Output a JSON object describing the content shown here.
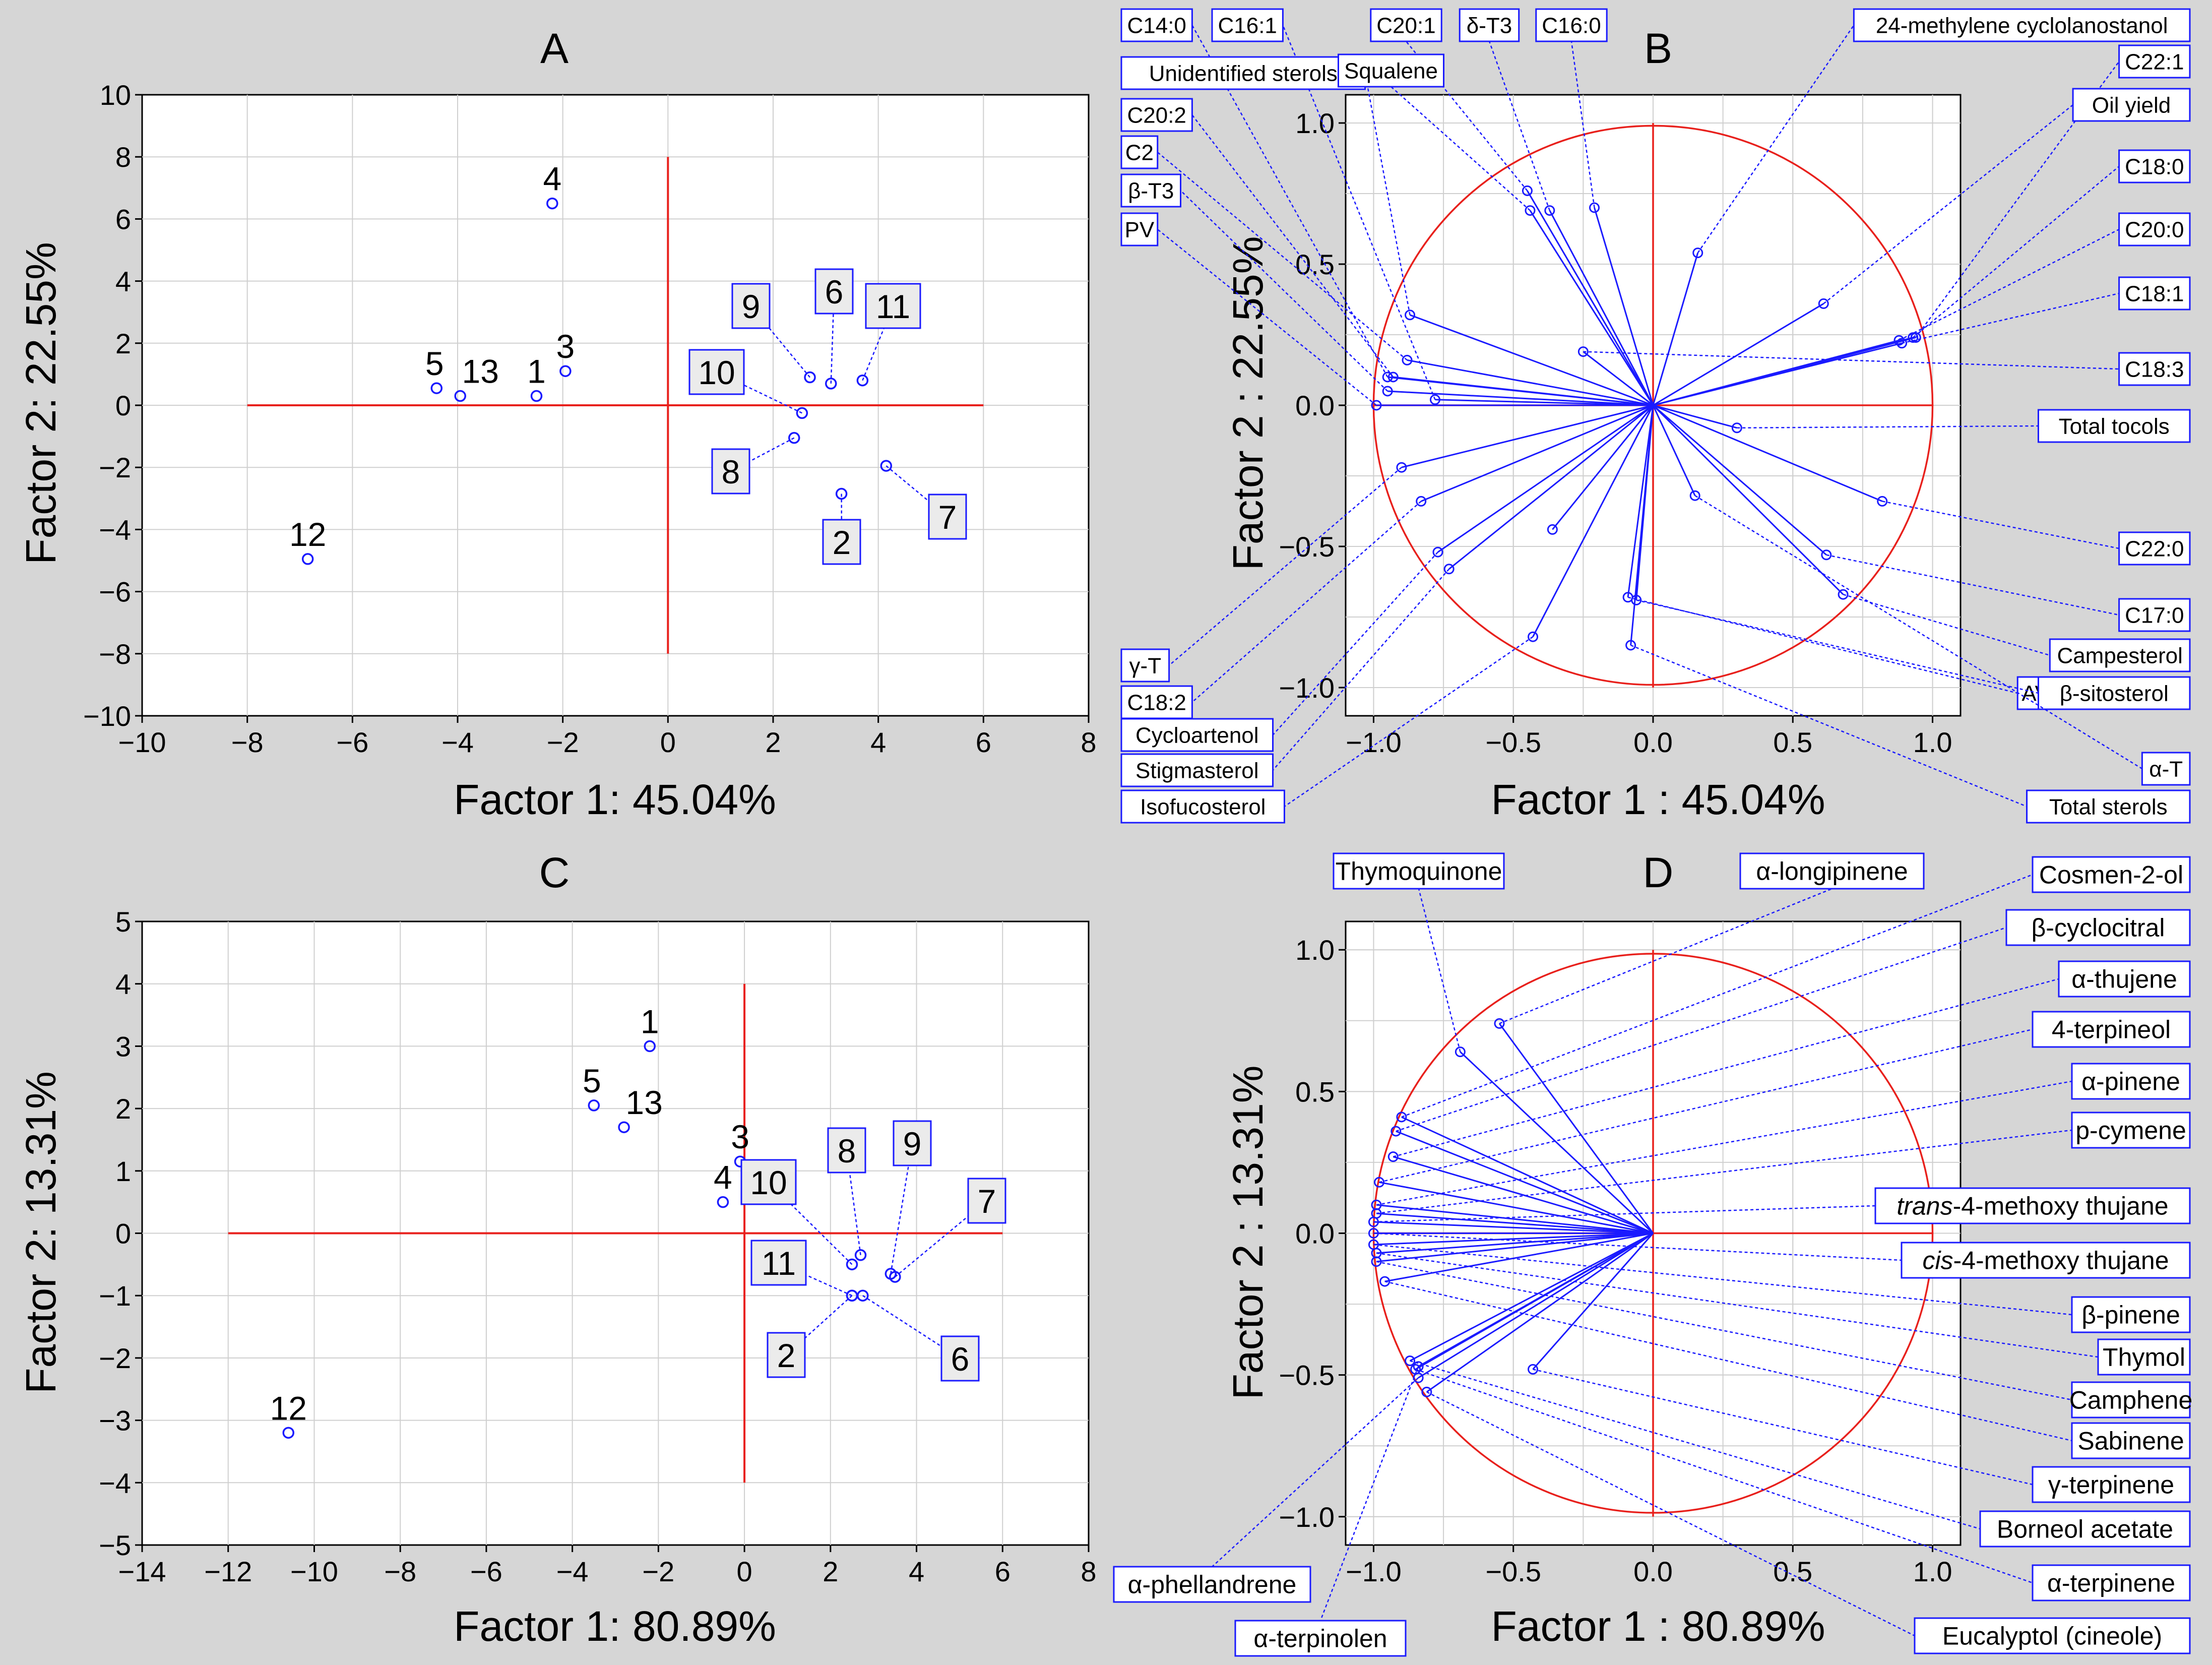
{
  "chart_data": [
    {
      "panel": "A",
      "type": "scatter",
      "title": "A",
      "xlabel": "Factor 1: 45.04%",
      "ylabel": "Factor 2: 22.55%",
      "xlim": [
        -10,
        8
      ],
      "ylim": [
        -10,
        10
      ],
      "xticks": [
        "−10",
        "−8",
        "−6",
        "−4",
        "−2",
        "0",
        "2",
        "4",
        "6",
        "8"
      ],
      "yticks": [
        "−10",
        "−8",
        "−6",
        "−4",
        "−2",
        "0",
        "2",
        "4",
        "6",
        "8",
        "10"
      ],
      "points": [
        {
          "label": "1",
          "x": -2.5,
          "y": 0.3
        },
        {
          "label": "2",
          "x": 3.3,
          "y": -2.85,
          "boxed": true
        },
        {
          "label": "3",
          "x": -1.95,
          "y": 1.1
        },
        {
          "label": "4",
          "x": -2.2,
          "y": 6.5
        },
        {
          "label": "5",
          "x": -4.4,
          "y": 0.55
        },
        {
          "label": "6",
          "x": 3.1,
          "y": 0.7,
          "boxed": true
        },
        {
          "label": "7",
          "x": 4.15,
          "y": -1.95,
          "boxed": true
        },
        {
          "label": "8",
          "x": 2.4,
          "y": -1.05,
          "boxed": true
        },
        {
          "label": "9",
          "x": 2.7,
          "y": 0.9,
          "boxed": true
        },
        {
          "label": "10",
          "x": 2.55,
          "y": -0.25,
          "boxed": true
        },
        {
          "label": "11",
          "x": 3.7,
          "y": 0.8,
          "boxed": true
        },
        {
          "label": "12",
          "x": -6.85,
          "y": -4.95
        },
        {
          "label": "13",
          "x": -3.95,
          "y": 0.3
        }
      ]
    },
    {
      "panel": "B",
      "type": "scatter",
      "title": "B",
      "xlabel": "Factor 1 : 45.04%",
      "ylabel": "Factor 2 : 22.55%",
      "xlim": [
        -1.1,
        1.1
      ],
      "ylim": [
        -1.1,
        1.1
      ],
      "xticks": [
        "−1.0",
        "−0.5",
        "0.0",
        "0.5",
        "1.0"
      ],
      "yticks": [
        "−1.0",
        "−0.5",
        "0.0",
        "0.5",
        "1.0"
      ],
      "variables": [
        {
          "label": "C14:0",
          "x": -0.95,
          "y": 0.1
        },
        {
          "label": "C16:1",
          "x": -0.78,
          "y": 0.02
        },
        {
          "label": "Unidentified sterols",
          "x": -0.87,
          "y": 0.32
        },
        {
          "label": "C20:2",
          "x": -0.93,
          "y": 0.1
        },
        {
          "label": "C2",
          "x": -0.88,
          "y": 0.16
        },
        {
          "label": "β-T3",
          "x": -0.95,
          "y": 0.05
        },
        {
          "label": "PV",
          "x": -0.99,
          "y": 0.0
        },
        {
          "label": "C20:1",
          "x": -0.45,
          "y": 0.76
        },
        {
          "label": "δ-T3",
          "x": -0.37,
          "y": 0.69
        },
        {
          "label": "C16:0",
          "x": -0.21,
          "y": 0.7
        },
        {
          "label": "Squalene",
          "x": -0.44,
          "y": 0.69
        },
        {
          "label": "24-methylene cyclolanostanol",
          "x": 0.16,
          "y": 0.54
        },
        {
          "label": "C22:1",
          "x": 0.94,
          "y": 0.24
        },
        {
          "label": "Oil yield",
          "x": 0.61,
          "y": 0.36
        },
        {
          "label": "C18:0",
          "x": 0.93,
          "y": 0.24
        },
        {
          "label": "C20:0",
          "x": 0.88,
          "y": 0.23
        },
        {
          "label": "C18:1",
          "x": 0.89,
          "y": 0.22
        },
        {
          "label": "C18:3",
          "x": -0.25,
          "y": 0.19
        },
        {
          "label": "Total tocols",
          "x": 0.3,
          "y": -0.08
        },
        {
          "label": "C22:0",
          "x": 0.82,
          "y": -0.34
        },
        {
          "label": "C17:0",
          "x": 0.62,
          "y": -0.53
        },
        {
          "label": "Campesterol",
          "x": 0.68,
          "y": -0.67
        },
        {
          "label": "AV",
          "x": -0.09,
          "y": -0.68
        },
        {
          "label": "β-sitosterol",
          "x": -0.06,
          "y": -0.69
        },
        {
          "label": "α-T",
          "x": 0.15,
          "y": -0.32
        },
        {
          "label": "Total sterols",
          "x": -0.08,
          "y": -0.85
        },
        {
          "label": "γ-T",
          "x": -0.9,
          "y": -0.22
        },
        {
          "label": "C18:2",
          "x": -0.83,
          "y": -0.34
        },
        {
          "label": "Cycloartenol",
          "x": -0.77,
          "y": -0.52
        },
        {
          "label": "Stigmasterol",
          "x": -0.73,
          "y": -0.58
        },
        {
          "label": "Isofucosterol",
          "x": -0.43,
          "y": -0.82
        },
        {
          "label": "",
          "x": -0.36,
          "y": -0.44
        }
      ]
    },
    {
      "panel": "C",
      "type": "scatter",
      "title": "C",
      "xlabel": "Factor 1: 80.89%",
      "ylabel": "Factor 2: 13.31%",
      "xlim": [
        -14,
        8
      ],
      "ylim": [
        -5,
        5
      ],
      "xticks": [
        "−14",
        "−12",
        "−10",
        "−8",
        "−6",
        "−4",
        "−2",
        "0",
        "2",
        "4",
        "6",
        "8"
      ],
      "yticks": [
        "−5",
        "−4",
        "−3",
        "−2",
        "−1",
        "0",
        "1",
        "2",
        "3",
        "4",
        "5"
      ],
      "points": [
        {
          "label": "1",
          "x": -2.2,
          "y": 3.0
        },
        {
          "label": "2",
          "x": 2.5,
          "y": -1.0,
          "boxed": true
        },
        {
          "label": "3",
          "x": -0.1,
          "y": 1.15
        },
        {
          "label": "4",
          "x": -0.5,
          "y": 0.5
        },
        {
          "label": "5",
          "x": -3.5,
          "y": 2.05
        },
        {
          "label": "6",
          "x": 2.75,
          "y": -1.0,
          "boxed": true
        },
        {
          "label": "7",
          "x": 3.5,
          "y": -0.7,
          "boxed": true
        },
        {
          "label": "8",
          "x": 2.7,
          "y": -0.35,
          "boxed": true
        },
        {
          "label": "9",
          "x": 3.4,
          "y": -0.65,
          "boxed": true
        },
        {
          "label": "10",
          "x": 2.5,
          "y": -0.5,
          "boxed": true
        },
        {
          "label": "11",
          "x": 2.5,
          "y": -1.0,
          "boxed": true
        },
        {
          "label": "12",
          "x": -10.6,
          "y": -3.2
        },
        {
          "label": "13",
          "x": -2.8,
          "y": 1.7
        }
      ]
    },
    {
      "panel": "D",
      "type": "scatter",
      "title": "D",
      "xlabel": "Factor 1 : 80.89%",
      "ylabel": "Factor 2 : 13.31%",
      "xlim": [
        -1.1,
        1.1
      ],
      "ylim": [
        -1.1,
        1.1
      ],
      "xticks": [
        "−1.0",
        "−0.5",
        "0.0",
        "0.5",
        "1.0"
      ],
      "yticks": [
        "−1.0",
        "−0.5",
        "0.0",
        "0.5",
        "1.0"
      ],
      "variables": [
        {
          "label": "Thymoquinone",
          "x": -0.69,
          "y": 0.64
        },
        {
          "label": "α-longipinene",
          "x": -0.55,
          "y": 0.74
        },
        {
          "label": "Cosmen-2-ol",
          "x": -0.9,
          "y": 0.41
        },
        {
          "label": "β-cyclocitral",
          "x": -0.92,
          "y": 0.36
        },
        {
          "label": "α-thujene",
          "x": -0.93,
          "y": 0.27
        },
        {
          "label": "4-terpineol",
          "x": -0.98,
          "y": 0.18
        },
        {
          "label": "α-pinene",
          "x": -0.99,
          "y": 0.1
        },
        {
          "label": "p-cymene",
          "x": -0.99,
          "y": 0.07
        },
        {
          "label": "trans-4-methoxy thujane",
          "x": -1.0,
          "y": 0.04,
          "italic_prefix": "trans"
        },
        {
          "label": "cis-4-methoxy thujane",
          "x": -1.0,
          "y": 0.0,
          "italic_prefix": "cis"
        },
        {
          "label": "β-pinene",
          "x": -1.0,
          "y": -0.04
        },
        {
          "label": "Thymol",
          "x": -0.99,
          "y": -0.07
        },
        {
          "label": "Camphene",
          "x": -0.99,
          "y": -0.1
        },
        {
          "label": "Sabinene",
          "x": -0.96,
          "y": -0.17
        },
        {
          "label": "γ-terpinene",
          "x": -0.43,
          "y": -0.48
        },
        {
          "label": "Borneol acetate",
          "x": -0.87,
          "y": -0.45
        },
        {
          "label": "α-terpinene",
          "x": -0.85,
          "y": -0.48
        },
        {
          "label": "Eucalyptol (cineole)",
          "x": -0.81,
          "y": -0.56
        },
        {
          "label": "α-phellandrene",
          "x": -0.84,
          "y": -0.51
        },
        {
          "label": "α-terpinolen",
          "x": -0.84,
          "y": -0.47
        }
      ]
    }
  ]
}
